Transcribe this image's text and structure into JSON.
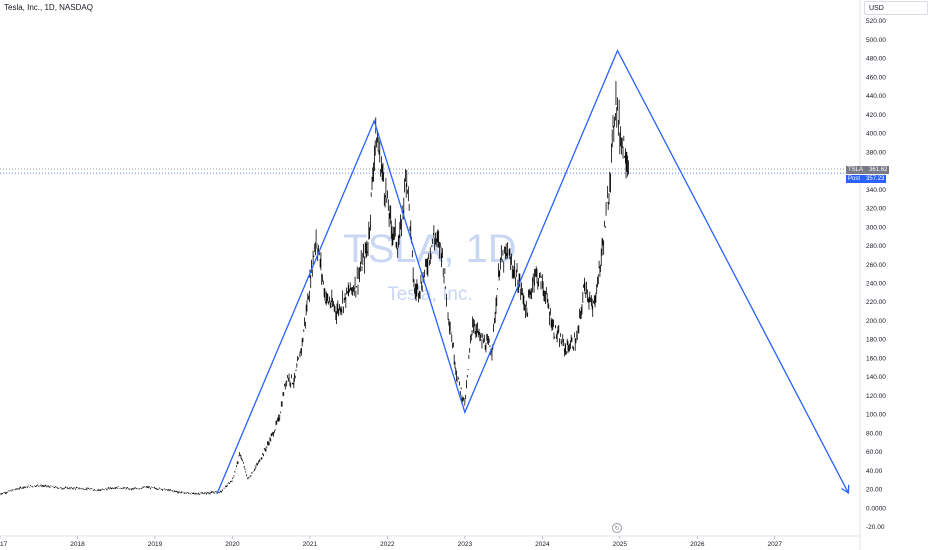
{
  "header": {
    "symbol_title": "Tesla, Inc., 1D, NASDAQ",
    "currency": "USD"
  },
  "watermark": {
    "symbol": "TSLA, 1D",
    "name": "Tesla, Inc."
  },
  "price_labels": {
    "last": {
      "ticker": "TSLA",
      "value": "361.62"
    },
    "post": {
      "label": "Post",
      "value": "357.23"
    }
  },
  "colors": {
    "price_series": "#000000",
    "pattern_line": "#2962ff",
    "last_price_line": "#787b86",
    "post_price_line": "#2962ff",
    "axis_text": "#131722",
    "watermark": "#c9d7f5"
  },
  "timezone_icon": "globe-icon",
  "chart_data": {
    "type": "line",
    "title": "Tesla, Inc., 1D, NASDAQ",
    "xlabel": "",
    "ylabel": "",
    "x_ticks": [
      "17",
      "2018",
      "2019",
      "2020",
      "2021",
      "2022",
      "2023",
      "2024",
      "2025",
      "2026",
      "2027"
    ],
    "y_ticks": [
      "-20.00",
      "0.0000",
      "20.00",
      "40.00",
      "60.00",
      "80.00",
      "100.00",
      "120.00",
      "140.00",
      "160.00",
      "180.00",
      "200.00",
      "220.00",
      "240.00",
      "260.00",
      "280.00",
      "300.00",
      "320.00",
      "340.00",
      "360.00",
      "380.00",
      "400.00",
      "420.00",
      "440.00",
      "460.00",
      "480.00",
      "500.00",
      "520.00"
    ],
    "xlim": [
      2017.0,
      2028.1
    ],
    "ylim": [
      -30,
      542
    ],
    "price_axis_position": "right",
    "grid": false,
    "series": [
      {
        "name": "TSLA",
        "style": "candles",
        "points": [
          [
            2017.0,
            15
          ],
          [
            2017.3,
            22
          ],
          [
            2017.5,
            24
          ],
          [
            2017.8,
            21
          ],
          [
            2018.0,
            21
          ],
          [
            2018.3,
            19
          ],
          [
            2018.5,
            22
          ],
          [
            2018.7,
            20
          ],
          [
            2018.9,
            22
          ],
          [
            2019.1,
            20
          ],
          [
            2019.3,
            17
          ],
          [
            2019.5,
            15
          ],
          [
            2019.7,
            16
          ],
          [
            2019.85,
            17
          ],
          [
            2020.0,
            30
          ],
          [
            2020.1,
            58
          ],
          [
            2020.2,
            30
          ],
          [
            2020.35,
            50
          ],
          [
            2020.5,
            75
          ],
          [
            2020.6,
            95
          ],
          [
            2020.7,
            140
          ],
          [
            2020.8,
            135
          ],
          [
            2020.9,
            175
          ],
          [
            2021.0,
            240
          ],
          [
            2021.08,
            290
          ],
          [
            2021.2,
            225
          ],
          [
            2021.35,
            210
          ],
          [
            2021.5,
            230
          ],
          [
            2021.6,
            240
          ],
          [
            2021.75,
            280
          ],
          [
            2021.85,
            400
          ],
          [
            2021.95,
            350
          ],
          [
            2022.05,
            300
          ],
          [
            2022.15,
            280
          ],
          [
            2022.25,
            360
          ],
          [
            2022.35,
            230
          ],
          [
            2022.45,
            240
          ],
          [
            2022.6,
            290
          ],
          [
            2022.7,
            275
          ],
          [
            2022.8,
            200
          ],
          [
            2022.9,
            140
          ],
          [
            2023.0,
            110
          ],
          [
            2023.1,
            200
          ],
          [
            2023.2,
            180
          ],
          [
            2023.35,
            170
          ],
          [
            2023.45,
            260
          ],
          [
            2023.55,
            270
          ],
          [
            2023.7,
            240
          ],
          [
            2023.8,
            210
          ],
          [
            2023.9,
            250
          ],
          [
            2024.0,
            240
          ],
          [
            2024.15,
            190
          ],
          [
            2024.3,
            170
          ],
          [
            2024.45,
            180
          ],
          [
            2024.55,
            240
          ],
          [
            2024.65,
            210
          ],
          [
            2024.75,
            260
          ],
          [
            2024.85,
            330
          ],
          [
            2024.95,
            440
          ],
          [
            2025.0,
            400
          ],
          [
            2025.08,
            380
          ],
          [
            2025.12,
            361.62
          ]
        ]
      },
      {
        "name": "",
        "style": "line",
        "points": [
          [
            2019.8,
            15
          ],
          [
            2021.83,
            413
          ],
          [
            2023.0,
            102
          ],
          [
            2024.97,
            488
          ],
          [
            2027.95,
            16
          ]
        ]
      }
    ],
    "last_price": 361.62,
    "post_price": 357.23
  }
}
